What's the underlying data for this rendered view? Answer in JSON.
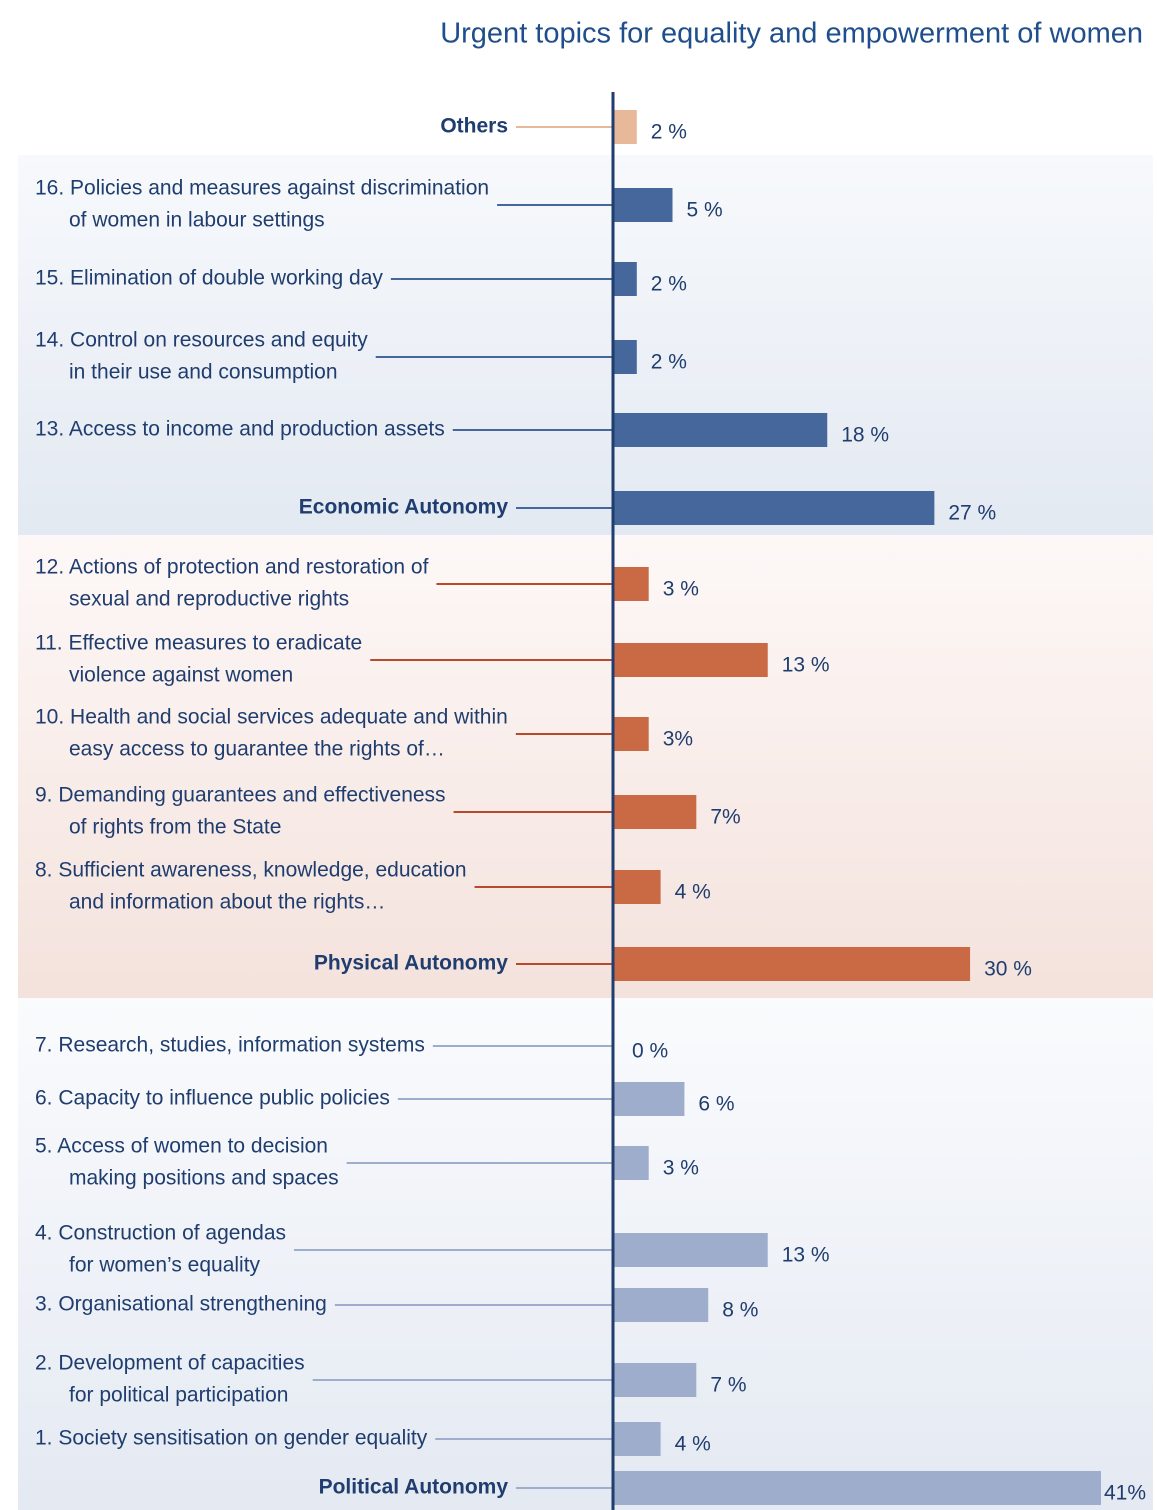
{
  "chart_data": {
    "type": "bar",
    "orientation": "horizontal",
    "title": "Urgent topics for equality and empowerment of women",
    "categories": [
      [
        "Others"
      ],
      [
        "16. Policies and measures against discrimination",
        "of women in labour settings"
      ],
      [
        "15. Elimination of double working day"
      ],
      [
        "14. Control on resources and equity",
        "in their use and consumption"
      ],
      [
        "13. Access to income and production assets"
      ],
      [
        "Economic Autonomy"
      ],
      [
        "12. Actions of protection and restoration of",
        "sexual and reproductive rights"
      ],
      [
        "11. Effective measures to eradicate",
        "violence against women"
      ],
      [
        "10. Health and social services adequate and within",
        "easy access to guarantee the rights of…"
      ],
      [
        "9.  Demanding guarantees and effectiveness",
        "of rights from the State"
      ],
      [
        "8.  Sufficient awareness, knowledge, education",
        "and information about the rights…"
      ],
      [
        "Physical Autonomy"
      ],
      [
        "7.  Research, studies, information systems"
      ],
      [
        "6.  Capacity to influence public policies"
      ],
      [
        "5.  Access of women to decision",
        "making positions and spaces"
      ],
      [
        "4.  Construction of agendas",
        "for women’s equality"
      ],
      [
        "3.  Organisational strengthening"
      ],
      [
        "2.  Development of capacities",
        "for political participation"
      ],
      [
        "1.  Society sensitisation on gender equality"
      ],
      [
        "Political Autonomy"
      ]
    ],
    "values": [
      2,
      5,
      2,
      2,
      18,
      27,
      3,
      13,
      3,
      7,
      4,
      30,
      0,
      6,
      3,
      13,
      8,
      7,
      4,
      41
    ],
    "value_labels": [
      "2 %",
      "5 %",
      "2 %",
      "2 %",
      "18 %",
      "27 %",
      "3 %",
      "13 %",
      "3%",
      "7%",
      "4 %",
      "30 %",
      "0 %",
      "6 %",
      "3 %",
      "13 %",
      "8 %",
      "7 %",
      "4 %",
      "41%"
    ],
    "colors": [
      "#e8b89a",
      "#46679b",
      "#46679b",
      "#46679b",
      "#46679b",
      "#46679b",
      "#c96a45",
      "#c96a45",
      "#c96a45",
      "#c96a45",
      "#c96a45",
      "#c96a45",
      "#9eadcb",
      "#9eadcb",
      "#9eadcb",
      "#9eadcb",
      "#9eadcb",
      "#9eadcb",
      "#9eadcb",
      "#9eadcb"
    ],
    "xlim": [
      0,
      41
    ]
  }
}
